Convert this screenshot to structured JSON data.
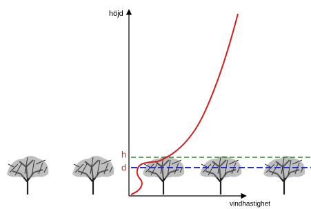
{
  "axes": {
    "y_label": "höjd",
    "x_label": "vindhastighet"
  },
  "levels": {
    "canopy_height": "h",
    "displacement_height": "d"
  }
}
